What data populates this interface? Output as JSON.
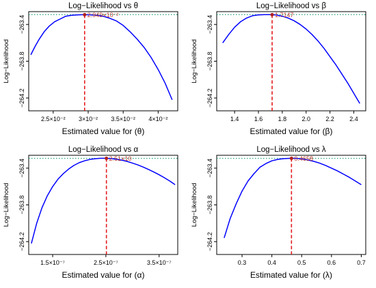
{
  "chart_data": [
    {
      "type": "line",
      "title": "Log−Likelihood vs θ",
      "xlabel": "Estimated value for (θ)",
      "ylabel": "Log−Likelihood",
      "xlim": [
        0.0215,
        0.0428
      ],
      "ylim": [
        -264.34,
        -263.26
      ],
      "xticks": [
        0.025,
        0.03,
        0.035,
        0.04
      ],
      "xtick_labels": [
        "2.5×10⁻²",
        "3×10⁻²",
        "3.5×10⁻²",
        "4×10⁻²"
      ],
      "yticks": [
        -263.4,
        -263.8,
        -264.2
      ],
      "ytick_labels": [
        "−263.4",
        "−263.8",
        "−264.2"
      ],
      "series": [
        {
          "x": [
            0.0218,
            0.0224,
            0.023,
            0.0237,
            0.0244,
            0.0252,
            0.026,
            0.0268,
            0.0276,
            0.0285,
            0.0294,
            0.0303,
            0.0312,
            0.0321,
            0.033,
            0.034,
            0.035,
            0.036,
            0.037,
            0.038,
            0.039,
            0.04,
            0.041,
            0.042
          ],
          "y": [
            -263.73,
            -263.64,
            -263.56,
            -263.48,
            -263.42,
            -263.37,
            -263.34,
            -263.31,
            -263.3,
            -263.295,
            -263.293,
            -263.295,
            -263.3,
            -263.31,
            -263.33,
            -263.36,
            -263.41,
            -263.48,
            -263.56,
            -263.65,
            -263.76,
            -263.89,
            -264.04,
            -264.22
          ]
        }
      ],
      "max_point": {
        "x": 0.02949,
        "y": -263.293
      },
      "annotation": "2.949×10⁻²",
      "max_loglik": -263.293,
      "colors": {
        "curve": "#0000ff",
        "vline": "#e41a1c",
        "hline": "#1b9e77",
        "point": "#b22222"
      }
    },
    {
      "type": "line",
      "title": "Log−Likelihood vs β",
      "xlabel": "Estimated value for (β)",
      "ylabel": "Log−Likelihood",
      "xlim": [
        1.25,
        2.5
      ],
      "ylim": [
        -264.34,
        -263.26
      ],
      "xticks": [
        1.4,
        1.6,
        1.8,
        2.0,
        2.2,
        2.4
      ],
      "xtick_labels": [
        "1.4",
        "1.6",
        "1.8",
        "2.0",
        "2.2",
        "2.4"
      ],
      "yticks": [
        -263.4,
        -263.8,
        -264.2
      ],
      "ytick_labels": [
        "−263.4",
        "−263.8",
        "−264.2"
      ],
      "series": [
        {
          "x": [
            1.3,
            1.35,
            1.4,
            1.45,
            1.5,
            1.55,
            1.6,
            1.65,
            1.7,
            1.75,
            1.8,
            1.85,
            1.9,
            1.95,
            2.0,
            2.05,
            2.1,
            2.15,
            2.2,
            2.25,
            2.3,
            2.35,
            2.4,
            2.45
          ],
          "y": [
            -263.6,
            -263.51,
            -263.43,
            -263.37,
            -263.33,
            -263.305,
            -263.295,
            -263.293,
            -263.293,
            -263.296,
            -263.31,
            -263.33,
            -263.36,
            -263.4,
            -263.45,
            -263.51,
            -263.58,
            -263.66,
            -263.75,
            -263.84,
            -263.94,
            -264.04,
            -264.15,
            -264.26
          ]
        }
      ],
      "max_point": {
        "x": 1.7147,
        "y": -263.293
      },
      "annotation": "1.7147",
      "max_loglik": -263.293,
      "colors": {
        "curve": "#0000ff",
        "vline": "#e41a1c",
        "hline": "#1b9e77",
        "point": "#b22222"
      }
    },
    {
      "type": "line",
      "title": "Log−Likelihood vs α",
      "xlabel": "Estimated value for (α)",
      "ylabel": "Log−Likelihood",
      "xlim": [
        1.05e-07,
        3.85e-07
      ],
      "ylim": [
        -264.34,
        -263.26
      ],
      "xticks": [
        1.5e-07,
        2.5e-07,
        3.5e-07
      ],
      "xtick_labels": [
        "1.5×10⁻⁷",
        "2.5×10⁻⁷",
        "3.5×10⁻⁷"
      ],
      "yticks": [
        -263.4,
        -263.8,
        -264.2
      ],
      "ytick_labels": [
        "−263.4",
        "−263.8",
        "−264.2"
      ],
      "series": [
        {
          "x": [
            1.1e-07,
            1.2e-07,
            1.3e-07,
            1.4e-07,
            1.5e-07,
            1.6e-07,
            1.7e-07,
            1.8e-07,
            1.9e-07,
            2e-07,
            2.1e-07,
            2.2e-07,
            2.3e-07,
            2.4e-07,
            2.5e-07,
            2.6e-07,
            2.7e-07,
            2.8e-07,
            2.9e-07,
            3e-07,
            3.1e-07,
            3.2e-07,
            3.3e-07,
            3.4e-07,
            3.5e-07,
            3.6e-07,
            3.7e-07,
            3.8e-07
          ],
          "y": [
            -264.22,
            -264.0,
            -263.83,
            -263.7,
            -263.6,
            -263.52,
            -263.46,
            -263.41,
            -263.37,
            -263.34,
            -263.32,
            -263.305,
            -263.297,
            -263.293,
            -263.293,
            -263.296,
            -263.303,
            -263.313,
            -263.327,
            -263.345,
            -263.365,
            -263.388,
            -263.414,
            -263.442,
            -263.472,
            -263.505,
            -263.54,
            -263.58
          ]
        }
      ],
      "max_point": {
        "x": 2.51e-07,
        "y": -263.293
      },
      "annotation": "2.51×10",
      "max_loglik": -263.293,
      "colors": {
        "curve": "#0000ff",
        "vline": "#e41a1c",
        "hline": "#1b9e77",
        "point": "#b22222"
      }
    },
    {
      "type": "line",
      "title": "Log−Likelihood vs λ",
      "xlabel": "Estimated value for (λ)",
      "ylabel": "Log−Likelihood",
      "xlim": [
        0.215,
        0.715
      ],
      "ylim": [
        -264.34,
        -263.26
      ],
      "xticks": [
        0.3,
        0.4,
        0.5,
        0.6,
        0.7
      ],
      "xtick_labels": [
        "0.3",
        "0.4",
        "0.5",
        "0.6",
        "0.7"
      ],
      "yticks": [
        -263.4,
        -263.8,
        -264.2
      ],
      "ytick_labels": [
        "−263.4",
        "−263.8",
        "−264.2"
      ],
      "series": [
        {
          "x": [
            0.24,
            0.26,
            0.28,
            0.3,
            0.32,
            0.34,
            0.36,
            0.38,
            0.4,
            0.42,
            0.44,
            0.4658,
            0.48,
            0.5,
            0.52,
            0.54,
            0.56,
            0.58,
            0.6,
            0.62,
            0.64,
            0.66,
            0.68,
            0.7
          ],
          "y": [
            -264.16,
            -263.95,
            -263.79,
            -263.65,
            -263.54,
            -263.46,
            -263.39,
            -263.35,
            -263.32,
            -263.305,
            -263.296,
            -263.293,
            -263.294,
            -263.298,
            -263.31,
            -263.325,
            -263.345,
            -263.37,
            -263.4,
            -263.43,
            -263.465,
            -263.5,
            -263.54,
            -263.58
          ]
        }
      ],
      "max_point": {
        "x": 0.4658,
        "y": -263.293
      },
      "annotation": "0.4658",
      "max_loglik": -263.293,
      "colors": {
        "curve": "#0000ff",
        "vline": "#e41a1c",
        "hline": "#1b9e77",
        "point": "#b22222"
      }
    }
  ]
}
